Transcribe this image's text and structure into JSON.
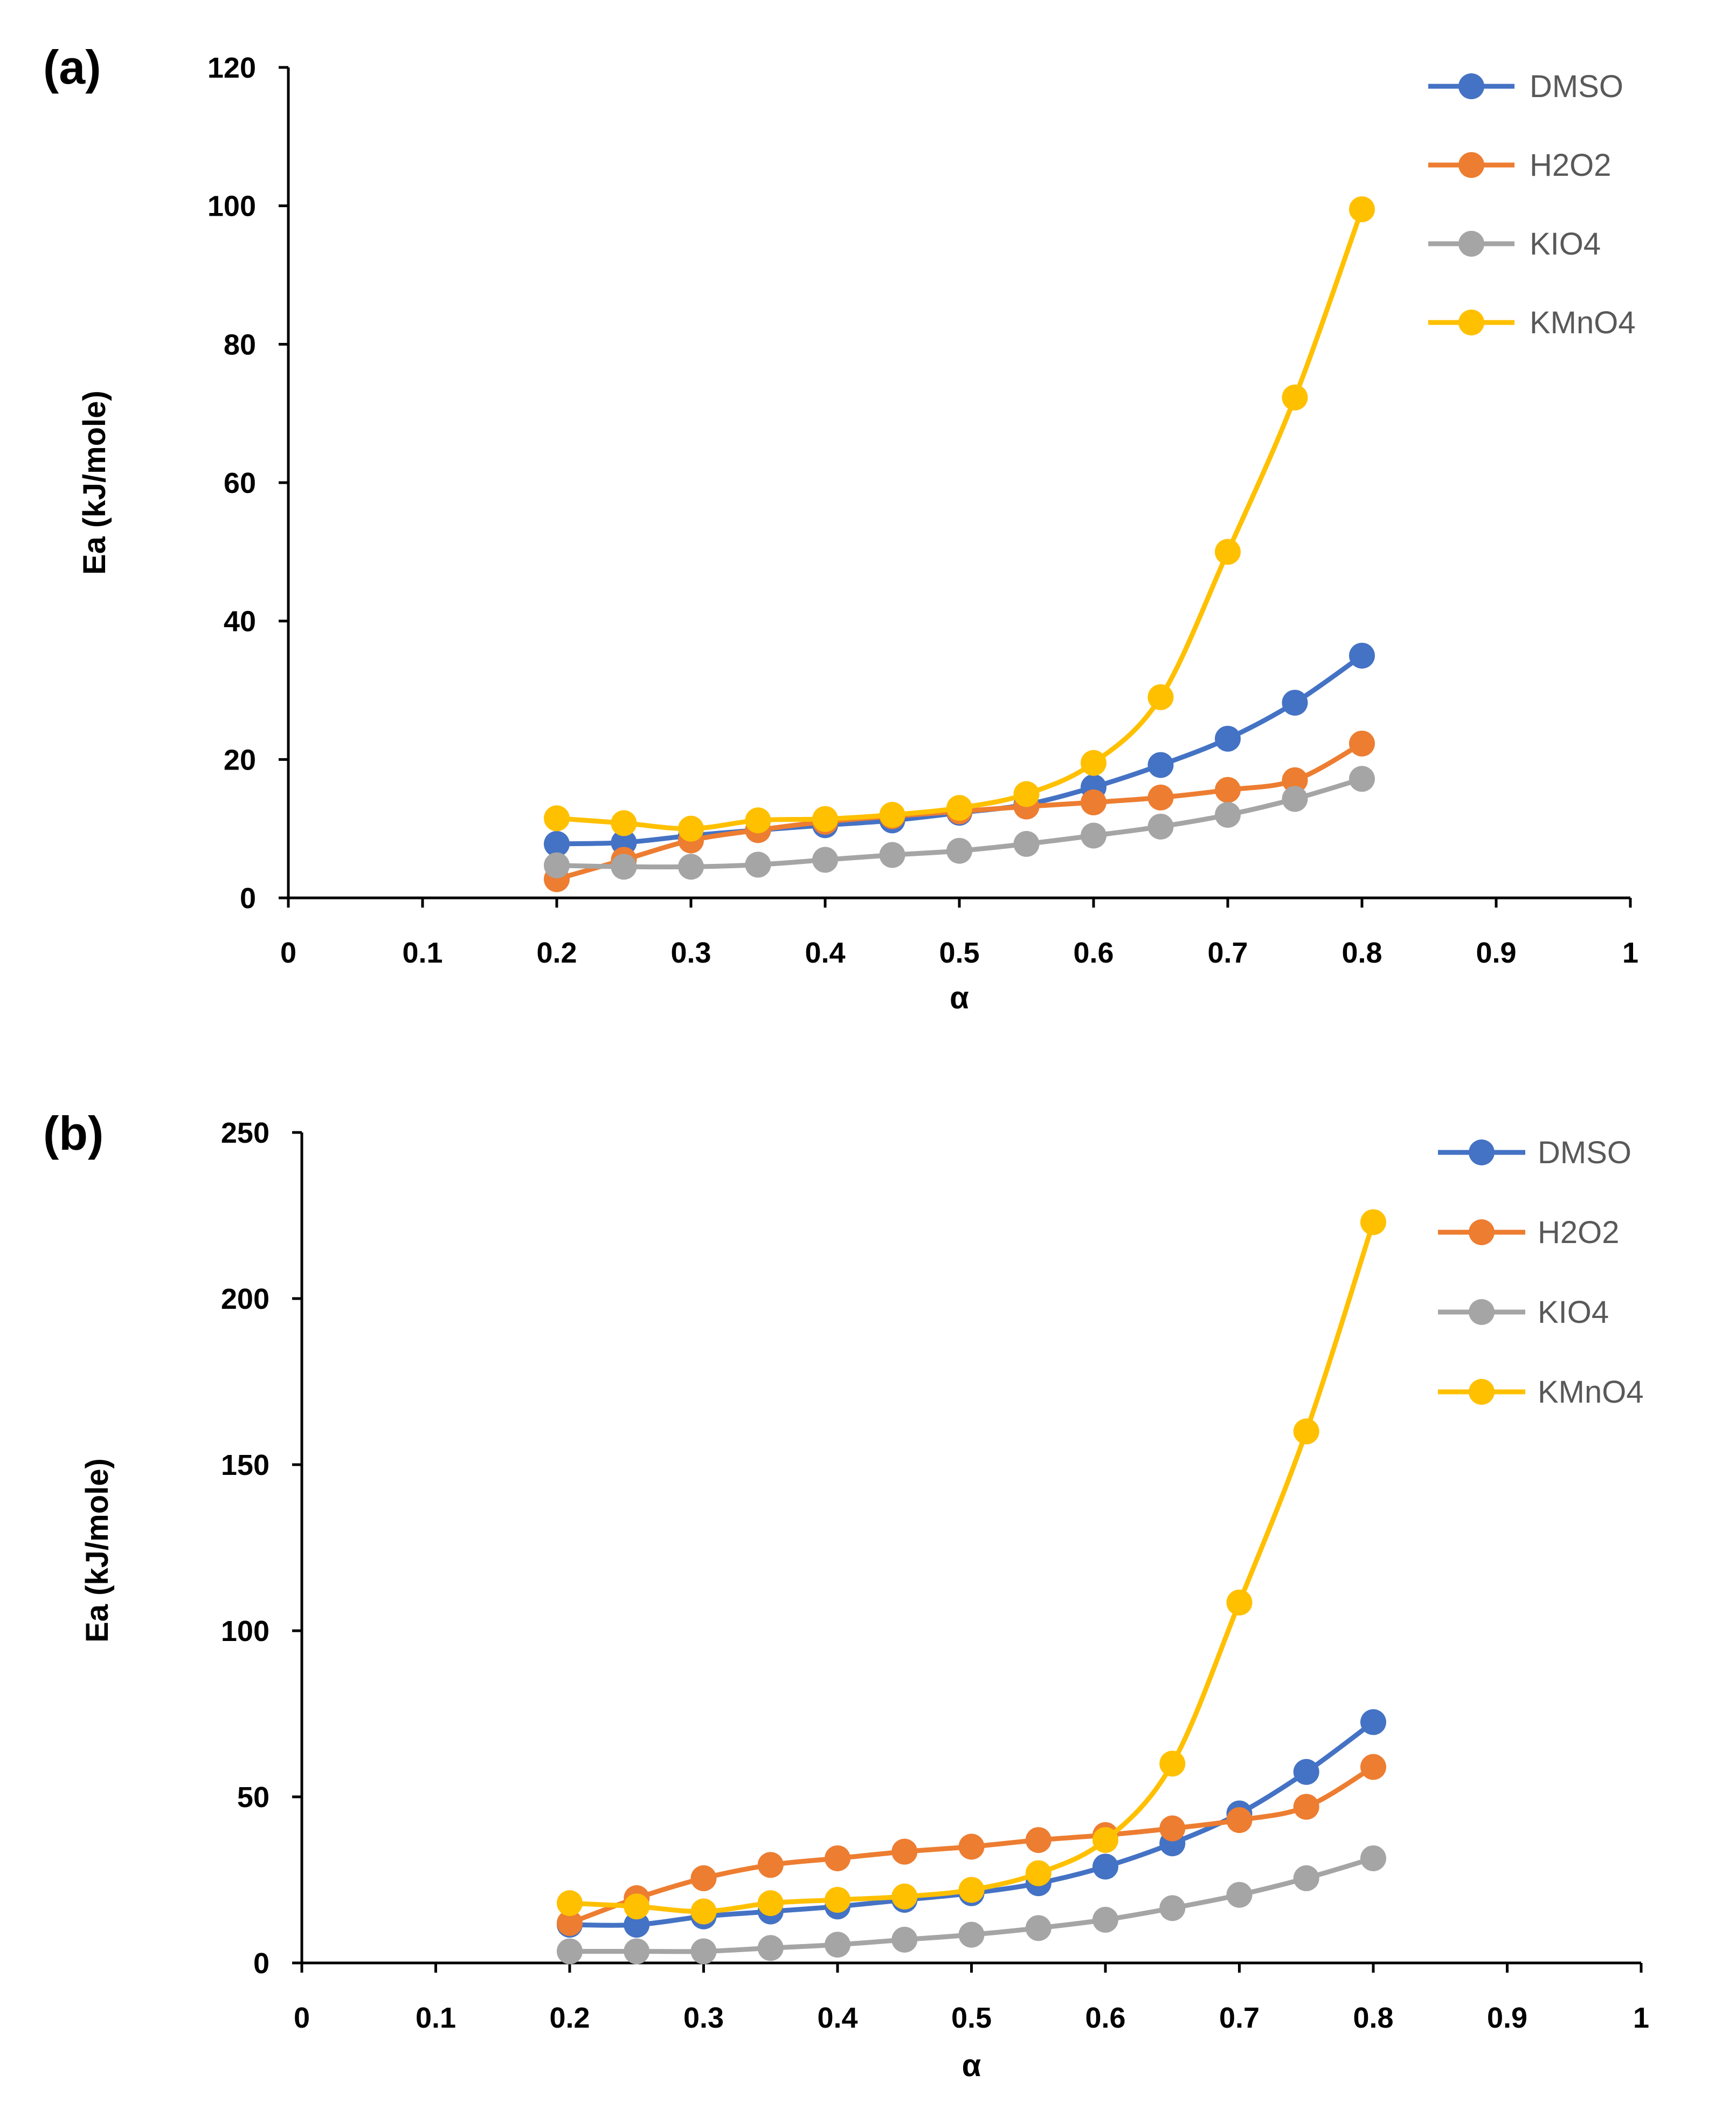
{
  "chart_data": [
    {
      "type": "line",
      "panel_label": "(a)",
      "xlabel": "α",
      "ylabel": "Ea (kJ/mole)",
      "xlim": [
        0,
        1
      ],
      "ylim": [
        0,
        120
      ],
      "x_ticks": [
        "0",
        "0.1",
        "0.2",
        "0.3",
        "0.4",
        "0.5",
        "0.6",
        "0.7",
        "0.8",
        "0.9",
        "1"
      ],
      "y_ticks": [
        "0",
        "20",
        "40",
        "60",
        "80",
        "100",
        "120"
      ],
      "x": [
        0.2,
        0.25,
        0.3,
        0.35,
        0.4,
        0.45,
        0.5,
        0.55,
        0.6,
        0.65,
        0.7,
        0.75,
        0.8
      ],
      "legend_position": "top-right",
      "series": [
        {
          "name": "DMSO",
          "color": "#4472C4",
          "values": [
            7.8,
            8.0,
            9.0,
            9.8,
            10.5,
            11.2,
            12.3,
            13.5,
            16.0,
            19.2,
            23.0,
            28.2,
            35.0
          ]
        },
        {
          "name": "H2O2",
          "color": "#ED7D31",
          "values": [
            2.7,
            5.5,
            8.3,
            9.8,
            11.0,
            11.8,
            12.5,
            13.2,
            13.8,
            14.5,
            15.6,
            17.0,
            22.3
          ]
        },
        {
          "name": "KIO4",
          "color": "#A5A5A5",
          "values": [
            4.7,
            4.5,
            4.5,
            4.8,
            5.5,
            6.2,
            6.8,
            7.8,
            9.0,
            10.3,
            12.0,
            14.3,
            17.2
          ]
        },
        {
          "name": "KMnO4",
          "color": "#FFC000",
          "values": [
            11.5,
            10.8,
            10.0,
            11.2,
            11.4,
            12.0,
            13.0,
            15.0,
            19.5,
            29.0,
            50.0,
            72.3,
            99.5
          ]
        }
      ]
    },
    {
      "type": "line",
      "panel_label": "(b)",
      "xlabel": "α",
      "ylabel": "Ea (kJ/mole)",
      "xlim": [
        0,
        1
      ],
      "ylim": [
        0,
        250
      ],
      "x_ticks": [
        "0",
        "0.1",
        "0.2",
        "0.3",
        "0.4",
        "0.5",
        "0.6",
        "0.7",
        "0.8",
        "0.9",
        "1"
      ],
      "y_ticks": [
        "0",
        "50",
        "100",
        "150",
        "200",
        "250"
      ],
      "x": [
        0.2,
        0.25,
        0.3,
        0.35,
        0.4,
        0.45,
        0.5,
        0.55,
        0.6,
        0.65,
        0.7,
        0.75,
        0.8
      ],
      "legend_position": "top-right",
      "series": [
        {
          "name": "DMSO",
          "color": "#4472C4",
          "values": [
            11.5,
            11.5,
            14.0,
            15.5,
            17.0,
            19.0,
            21.0,
            24.0,
            29.0,
            36.0,
            45.0,
            57.5,
            72.5
          ]
        },
        {
          "name": "H2O2",
          "color": "#ED7D31",
          "values": [
            12.0,
            19.5,
            25.5,
            29.5,
            31.5,
            33.5,
            35.0,
            37.0,
            38.5,
            40.5,
            43.0,
            47.0,
            59.0
          ]
        },
        {
          "name": "KIO4",
          "color": "#A5A5A5",
          "values": [
            3.5,
            3.5,
            3.5,
            4.5,
            5.5,
            7.0,
            8.5,
            10.5,
            13.0,
            16.5,
            20.5,
            25.5,
            31.5
          ]
        },
        {
          "name": "KMnO4",
          "color": "#FFC000",
          "values": [
            18.0,
            17.0,
            15.5,
            18.0,
            19.0,
            20.0,
            22.0,
            27.0,
            37.0,
            60.0,
            108.5,
            160.0,
            223.0
          ]
        }
      ]
    }
  ]
}
